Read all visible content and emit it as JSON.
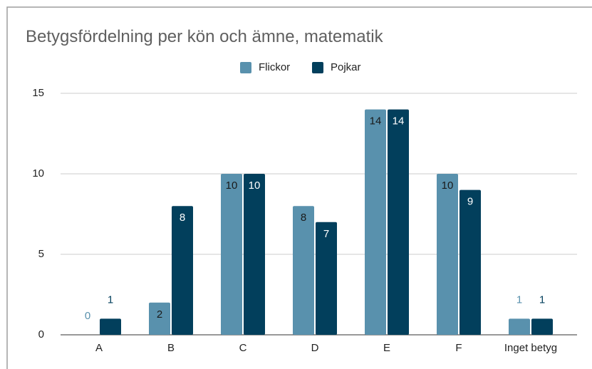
{
  "chart_data": {
    "type": "bar",
    "title": "Betygsfördelning per kön och ämne, matematik",
    "categories": [
      "A",
      "B",
      "C",
      "D",
      "E",
      "F",
      "Inget betyg"
    ],
    "series": [
      {
        "name": "Flickor",
        "color": "#5991ad",
        "values": [
          0,
          2,
          10,
          8,
          14,
          10,
          1
        ]
      },
      {
        "name": "Pojkar",
        "color": "#023f5c",
        "values": [
          1,
          8,
          10,
          7,
          14,
          9,
          1
        ]
      }
    ],
    "ylim": [
      0,
      15
    ],
    "yticks": [
      0,
      5,
      10,
      15
    ],
    "grid": true,
    "legend": "top"
  }
}
